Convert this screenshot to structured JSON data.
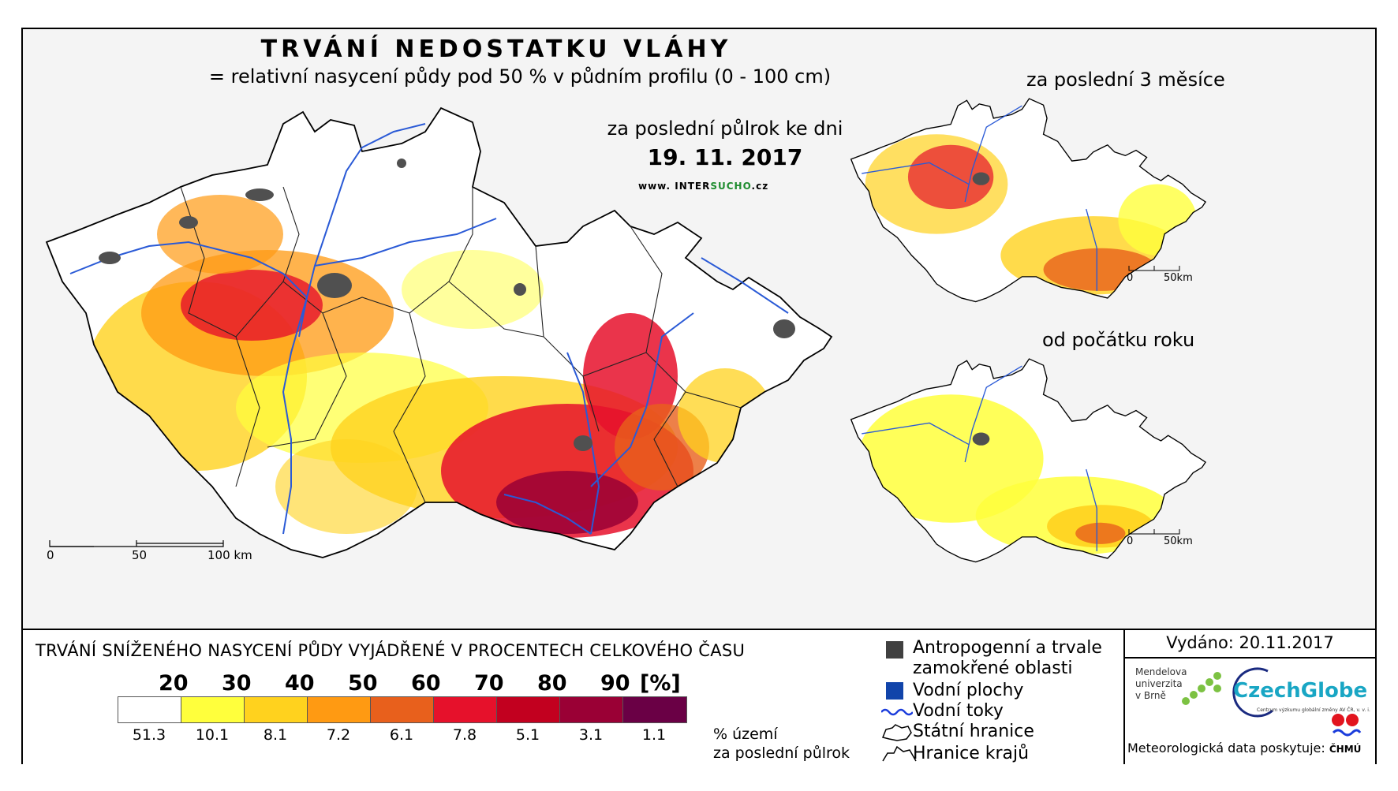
{
  "title": "TRVÁNÍ NEDOSTATKU VLÁHY",
  "subtitle": "= relativní nasycení půdy pod 50 % v půdním profilu (0 - 100 cm)",
  "period_label": "za poslední půlrok ke dni",
  "date": "19. 11. 2017",
  "website": {
    "prefix": "www. INTER",
    "bold": "SUCHO",
    "suffix": ".cz"
  },
  "main_scale": {
    "labels": [
      "0",
      "50",
      "100 km"
    ]
  },
  "insets": [
    {
      "label": "za poslední 3 měsíce",
      "scale": [
        "0",
        "50km"
      ]
    },
    {
      "label": "od počátku roku",
      "scale": [
        "0",
        "50km"
      ]
    }
  ],
  "legend": {
    "title": "TRVÁNÍ SNÍŽENÉHO NASYCENÍ PŮDY VYJÁDŘENÉ V PROCENTECH CELKOVÉHO ČASU",
    "ticks": [
      "20",
      "30",
      "40",
      "50",
      "60",
      "70",
      "80",
      "90",
      "[%]"
    ],
    "colors": [
      "#ffffff",
      "#ffff3c",
      "#ffd21e",
      "#ff9a12",
      "#e8601c",
      "#e6112b",
      "#c2001f",
      "#9a0035",
      "#6a0045"
    ],
    "percentages": [
      "51.3",
      "10.1",
      "8.1",
      "7.2",
      "6.1",
      "7.8",
      "5.1",
      "3.1",
      "1.1"
    ],
    "percent_note_1": "% území",
    "percent_note_2": "za poslední půlrok"
  },
  "symbols": {
    "anthropogenic_1": "Antropogenní a trvale",
    "anthropogenic_2": "zamokřené oblasti",
    "water_bodies": "Vodní plochy",
    "rivers": "Vodní toky",
    "state_border": "Státní hranice",
    "regions": "Hranice krajů"
  },
  "issued": "Vydáno: 20.11.2017",
  "mendel": [
    "Mendelova",
    "univerzita",
    "v Brně"
  ],
  "czechglobe": {
    "word": "CzechGlobe",
    "sub": "Centrum výzkumu globální změny AV ČR, v. v. i."
  },
  "met_data": "Meteorologická data poskytuje:",
  "chmu": "ČHMÚ",
  "colors": {
    "river": "#2a5ad6",
    "urban": "#505050",
    "water": "#1144aa"
  }
}
